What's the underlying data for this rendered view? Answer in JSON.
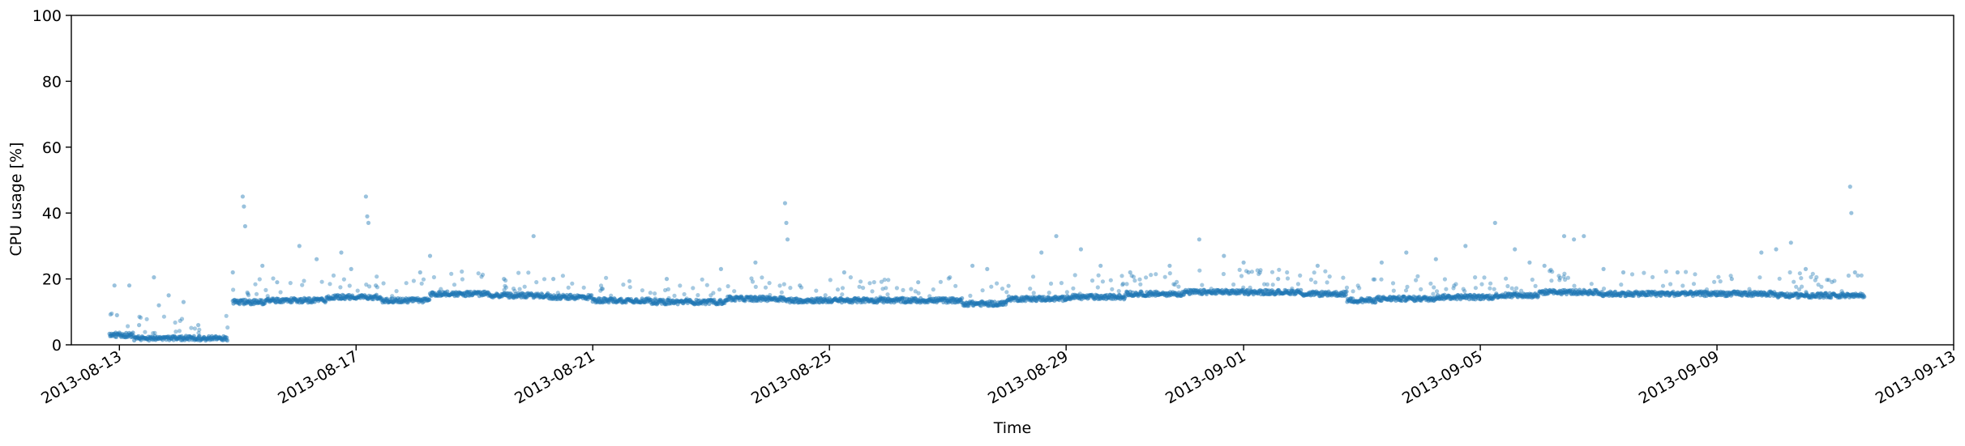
{
  "chart_data": {
    "type": "scatter",
    "title": "",
    "xlabel": "Time",
    "ylabel": "CPU usage [%]",
    "xlim": [
      "2013-08-12",
      "2013-09-13"
    ],
    "ylim": [
      0,
      100
    ],
    "grid": false,
    "legend": "none",
    "marker_color": "#1f77b4",
    "x_ticks": [
      "2013-08-13",
      "2013-08-17",
      "2013-08-21",
      "2013-08-25",
      "2013-08-29",
      "2013-09-01",
      "2013-09-05",
      "2013-09-09",
      "2013-09-13"
    ],
    "y_ticks": [
      0,
      20,
      40,
      60,
      80,
      100
    ],
    "segments": [
      {
        "start": "2013-08-12 20:00",
        "end": "2013-08-13 06:00",
        "level": 3.0
      },
      {
        "start": "2013-08-13 06:00",
        "end": "2013-08-14 04:00",
        "level": 2.0
      },
      {
        "start": "2013-08-14 04:00",
        "end": "2013-08-14 20:00",
        "level": 2.0
      },
      {
        "start": "2013-08-14 22:00",
        "end": "2013-08-15 12:00",
        "level": 13.0
      },
      {
        "start": "2013-08-15 12:00",
        "end": "2013-08-16 12:00",
        "level": 13.5
      },
      {
        "start": "2013-08-16 12:00",
        "end": "2013-08-17 10:00",
        "level": 14.5
      },
      {
        "start": "2013-08-17 10:00",
        "end": "2013-08-18 06:00",
        "level": 13.5
      },
      {
        "start": "2013-08-18 06:00",
        "end": "2013-08-19 06:00",
        "level": 15.5
      },
      {
        "start": "2013-08-19 06:00",
        "end": "2013-08-20 06:00",
        "level": 15.0
      },
      {
        "start": "2013-08-20 06:00",
        "end": "2013-08-21 00:00",
        "level": 14.5
      },
      {
        "start": "2013-08-21 00:00",
        "end": "2013-08-22 00:00",
        "level": 13.5
      },
      {
        "start": "2013-08-22 00:00",
        "end": "2013-08-23 06:00",
        "level": 13.0
      },
      {
        "start": "2013-08-23 06:00",
        "end": "2013-08-24 06:00",
        "level": 14.0
      },
      {
        "start": "2013-08-24 06:00",
        "end": "2013-08-25 06:00",
        "level": 13.5
      },
      {
        "start": "2013-08-25 06:00",
        "end": "2013-08-26 06:00",
        "level": 13.5
      },
      {
        "start": "2013-08-26 06:00",
        "end": "2013-08-27 06:00",
        "level": 13.5
      },
      {
        "start": "2013-08-27 06:00",
        "end": "2013-08-28 00:00",
        "level": 12.5
      },
      {
        "start": "2013-08-28 00:00",
        "end": "2013-08-29 00:00",
        "level": 14.0
      },
      {
        "start": "2013-08-29 00:00",
        "end": "2013-08-30 00:00",
        "level": 14.5
      },
      {
        "start": "2013-08-30 00:00",
        "end": "2013-08-31 00:00",
        "level": 15.5
      },
      {
        "start": "2013-08-31 00:00",
        "end": "2013-09-02 00:00",
        "level": 16.0
      },
      {
        "start": "2013-09-02 00:00",
        "end": "2013-09-02 18:00",
        "level": 15.5
      },
      {
        "start": "2013-09-02 18:00",
        "end": "2013-09-03 06:00",
        "level": 13.5
      },
      {
        "start": "2013-09-03 06:00",
        "end": "2013-09-04 06:00",
        "level": 14.0
      },
      {
        "start": "2013-09-04 06:00",
        "end": "2013-09-05 06:00",
        "level": 14.5
      },
      {
        "start": "2013-09-05 06:00",
        "end": "2013-09-06 00:00",
        "level": 15.0
      },
      {
        "start": "2013-09-06 00:00",
        "end": "2013-09-07 00:00",
        "level": 16.0
      },
      {
        "start": "2013-09-07 00:00",
        "end": "2013-09-08 00:00",
        "level": 15.5
      },
      {
        "start": "2013-09-08 00:00",
        "end": "2013-09-09 00:00",
        "level": 15.5
      },
      {
        "start": "2013-09-09 00:00",
        "end": "2013-09-10 00:00",
        "level": 15.5
      },
      {
        "start": "2013-09-10 00:00",
        "end": "2013-09-11 12:00",
        "level": 15.0
      }
    ],
    "outliers": [
      {
        "x": "2013-08-12 22:00",
        "y": 18
      },
      {
        "x": "2013-08-12 23:00",
        "y": 9
      },
      {
        "x": "2013-08-13 04:00",
        "y": 18
      },
      {
        "x": "2013-08-13 08:00",
        "y": 6
      },
      {
        "x": "2013-08-13 14:00",
        "y": 20.5
      },
      {
        "x": "2013-08-13 16:00",
        "y": 12
      },
      {
        "x": "2013-08-13 20:00",
        "y": 15
      },
      {
        "x": "2013-08-14 02:00",
        "y": 13
      },
      {
        "x": "2013-08-14 08:00",
        "y": 6
      },
      {
        "x": "2013-08-14 22:00",
        "y": 22
      },
      {
        "x": "2013-08-15 02:00",
        "y": 45
      },
      {
        "x": "2013-08-15 02:30",
        "y": 42
      },
      {
        "x": "2013-08-15 03:00",
        "y": 36
      },
      {
        "x": "2013-08-15 10:00",
        "y": 24
      },
      {
        "x": "2013-08-15 16:00",
        "y": 19
      },
      {
        "x": "2013-08-16 01:00",
        "y": 30
      },
      {
        "x": "2013-08-16 08:00",
        "y": 26
      },
      {
        "x": "2013-08-16 18:00",
        "y": 28
      },
      {
        "x": "2013-08-16 22:00",
        "y": 23
      },
      {
        "x": "2013-08-17 04:00",
        "y": 45
      },
      {
        "x": "2013-08-17 04:30",
        "y": 39
      },
      {
        "x": "2013-08-17 05:00",
        "y": 37
      },
      {
        "x": "2013-08-17 08:00",
        "y": 18
      },
      {
        "x": "2013-08-18 02:00",
        "y": 22
      },
      {
        "x": "2013-08-18 06:00",
        "y": 27
      },
      {
        "x": "2013-08-19 12:00",
        "y": 20
      },
      {
        "x": "2013-08-20 00:00",
        "y": 33
      },
      {
        "x": "2013-08-20 08:00",
        "y": 20
      },
      {
        "x": "2013-08-21 04:00",
        "y": 17
      },
      {
        "x": "2013-08-22 06:00",
        "y": 20
      },
      {
        "x": "2013-08-23 04:00",
        "y": 23
      },
      {
        "x": "2013-08-23 18:00",
        "y": 25
      },
      {
        "x": "2013-08-24 06:00",
        "y": 43
      },
      {
        "x": "2013-08-24 06:30",
        "y": 37
      },
      {
        "x": "2013-08-24 07:00",
        "y": 32
      },
      {
        "x": "2013-08-24 12:00",
        "y": 18
      },
      {
        "x": "2013-08-25 06:00",
        "y": 22
      },
      {
        "x": "2013-08-26 12:00",
        "y": 19
      },
      {
        "x": "2013-08-27 10:00",
        "y": 24
      },
      {
        "x": "2013-08-27 16:00",
        "y": 23
      },
      {
        "x": "2013-08-28 14:00",
        "y": 28
      },
      {
        "x": "2013-08-28 20:00",
        "y": 33
      },
      {
        "x": "2013-08-29 06:00",
        "y": 29
      },
      {
        "x": "2013-08-29 14:00",
        "y": 24
      },
      {
        "x": "2013-08-30 02:00",
        "y": 22
      },
      {
        "x": "2013-08-30 18:00",
        "y": 24
      },
      {
        "x": "2013-08-31 06:00",
        "y": 32
      },
      {
        "x": "2013-08-31 16:00",
        "y": 27
      },
      {
        "x": "2013-09-01 00:00",
        "y": 25
      },
      {
        "x": "2013-09-01 02:00",
        "y": 22
      },
      {
        "x": "2013-09-01 14:00",
        "y": 20
      },
      {
        "x": "2013-09-02 06:00",
        "y": 24
      },
      {
        "x": "2013-09-03 08:00",
        "y": 25
      },
      {
        "x": "2013-09-03 18:00",
        "y": 28
      },
      {
        "x": "2013-09-04 06:00",
        "y": 26
      },
      {
        "x": "2013-09-04 18:00",
        "y": 30
      },
      {
        "x": "2013-09-05 06:00",
        "y": 37
      },
      {
        "x": "2013-09-05 14:00",
        "y": 29
      },
      {
        "x": "2013-09-05 20:00",
        "y": 25
      },
      {
        "x": "2013-09-06 02:00",
        "y": 24
      },
      {
        "x": "2013-09-06 10:00",
        "y": 33
      },
      {
        "x": "2013-09-06 14:00",
        "y": 32
      },
      {
        "x": "2013-09-06 18:00",
        "y": 33
      },
      {
        "x": "2013-09-07 02:00",
        "y": 23
      },
      {
        "x": "2013-09-07 10:00",
        "y": 22
      },
      {
        "x": "2013-09-08 08:00",
        "y": 22
      },
      {
        "x": "2013-09-09 06:00",
        "y": 20
      },
      {
        "x": "2013-09-09 18:00",
        "y": 28
      },
      {
        "x": "2013-09-10 00:00",
        "y": 29
      },
      {
        "x": "2013-09-10 06:00",
        "y": 31
      },
      {
        "x": "2013-09-10 12:00",
        "y": 23
      },
      {
        "x": "2013-09-11 06:00",
        "y": 48
      },
      {
        "x": "2013-09-11 06:30",
        "y": 40
      },
      {
        "x": "2013-09-11 08:00",
        "y": 22
      }
    ]
  }
}
